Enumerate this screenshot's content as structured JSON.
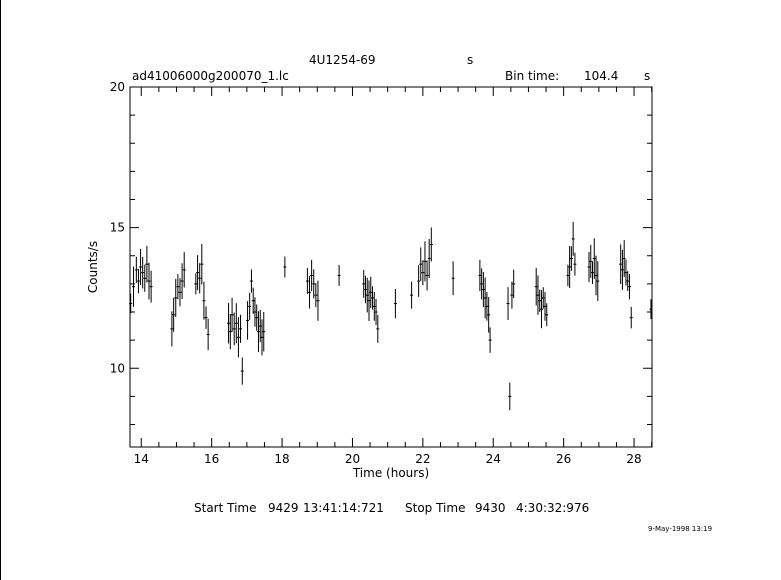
{
  "header": {
    "source_name": "4U1254-69",
    "source_unit": "s",
    "filename": "ad41006000g200070_1.lc",
    "bin_label": "Bin time:",
    "bin_value": "104.4",
    "bin_unit": "s"
  },
  "footer": {
    "start_label": "Start Time",
    "start_day": "9429",
    "start_time": "13:41:14:721",
    "stop_label": "Stop Time",
    "stop_day": "9430",
    "stop_time": "4:30:32:976",
    "stamp": "9-May-1998 13:19"
  },
  "chart_data": {
    "type": "scatter",
    "title": "4U1254-69",
    "xlabel": "Time (hours)",
    "ylabel": "Counts/s",
    "xlim": [
      13.68,
      28.51
    ],
    "ylim": [
      7.2,
      20.0
    ],
    "xticks": [
      14,
      16,
      18,
      20,
      22,
      24,
      26,
      28
    ],
    "yticks": [
      10,
      15,
      20
    ],
    "grid": false,
    "series": [
      {
        "segments": [
          [
            13.7,
            12.3
          ],
          [
            13.78,
            12.9
          ],
          [
            13.86,
            13.5
          ],
          [
            13.92,
            13.1
          ],
          [
            13.98,
            13.6
          ],
          [
            14.04,
            13.4
          ],
          [
            14.1,
            13.2
          ],
          [
            14.16,
            13.7
          ],
          [
            14.22,
            13.1
          ],
          [
            14.28,
            12.9
          ],
          [
            14.87,
            11.4
          ],
          [
            14.92,
            11.9
          ],
          [
            14.98,
            12.5
          ],
          [
            15.04,
            12.9
          ],
          [
            15.1,
            12.7
          ],
          [
            15.16,
            13.1
          ],
          [
            15.22,
            13.5
          ],
          [
            15.55,
            13.0
          ],
          [
            15.6,
            13.4
          ],
          [
            15.66,
            13.2
          ],
          [
            15.72,
            13.7
          ],
          [
            15.78,
            12.4
          ],
          [
            15.84,
            11.8
          ],
          [
            15.9,
            11.2
          ],
          [
            16.48,
            11.6
          ],
          [
            16.53,
            11.3
          ],
          [
            16.58,
            11.9
          ],
          [
            16.64,
            11.4
          ],
          [
            16.7,
            11.6
          ],
          [
            16.76,
            11.1
          ],
          [
            16.82,
            11.4
          ],
          [
            16.87,
            9.9
          ],
          [
            17.02,
            11.7
          ],
          [
            17.08,
            12.2
          ],
          [
            17.13,
            13.1
          ],
          [
            17.18,
            12.4
          ],
          [
            17.23,
            12.0
          ],
          [
            17.28,
            11.8
          ],
          [
            17.33,
            11.3
          ],
          [
            17.38,
            11.5
          ],
          [
            17.43,
            11.1
          ],
          [
            17.48,
            11.3
          ],
          [
            18.08,
            13.6
          ],
          [
            18.72,
            13.1
          ],
          [
            18.78,
            12.7
          ],
          [
            18.84,
            13.3
          ],
          [
            18.9,
            13.0
          ],
          [
            18.96,
            12.6
          ],
          [
            19.02,
            12.4
          ],
          [
            19.62,
            13.3
          ],
          [
            20.32,
            13.0
          ],
          [
            20.37,
            12.8
          ],
          [
            20.42,
            12.6
          ],
          [
            20.47,
            12.4
          ],
          [
            20.52,
            12.7
          ],
          [
            20.57,
            12.5
          ],
          [
            20.62,
            12.2
          ],
          [
            20.67,
            12.0
          ],
          [
            20.72,
            11.4
          ],
          [
            21.22,
            12.3
          ],
          [
            21.68,
            12.6
          ],
          [
            21.88,
            13.1
          ],
          [
            21.94,
            13.7
          ],
          [
            22.0,
            13.4
          ],
          [
            22.06,
            13.8
          ],
          [
            22.12,
            13.3
          ],
          [
            22.18,
            13.9
          ],
          [
            22.24,
            14.4
          ],
          [
            22.86,
            13.2
          ],
          [
            23.62,
            13.3
          ],
          [
            23.67,
            13.0
          ],
          [
            23.72,
            12.8
          ],
          [
            23.77,
            12.5
          ],
          [
            23.82,
            12.2
          ],
          [
            23.87,
            11.9
          ],
          [
            23.91,
            11.0
          ],
          [
            24.42,
            12.3
          ],
          [
            24.47,
            9.0
          ],
          [
            24.53,
            12.6
          ],
          [
            24.58,
            13.0
          ],
          [
            25.22,
            12.9
          ],
          [
            25.27,
            12.6
          ],
          [
            25.32,
            12.4
          ],
          [
            25.37,
            12.1
          ],
          [
            25.42,
            12.5
          ],
          [
            25.47,
            12.2
          ],
          [
            25.52,
            11.9
          ],
          [
            26.12,
            13.3
          ],
          [
            26.17,
            13.6
          ],
          [
            26.22,
            13.9
          ],
          [
            26.27,
            14.6
          ],
          [
            26.32,
            13.7
          ],
          [
            26.72,
            13.6
          ],
          [
            26.77,
            13.8
          ],
          [
            26.82,
            13.4
          ],
          [
            26.87,
            13.9
          ],
          [
            26.92,
            13.3
          ],
          [
            26.97,
            13.1
          ],
          [
            27.62,
            13.7
          ],
          [
            27.67,
            13.5
          ],
          [
            27.72,
            13.9
          ],
          [
            27.77,
            13.4
          ],
          [
            27.82,
            13.1
          ],
          [
            27.87,
            12.9
          ],
          [
            27.92,
            11.8
          ],
          [
            28.48,
            12.1
          ]
        ]
      }
    ]
  }
}
